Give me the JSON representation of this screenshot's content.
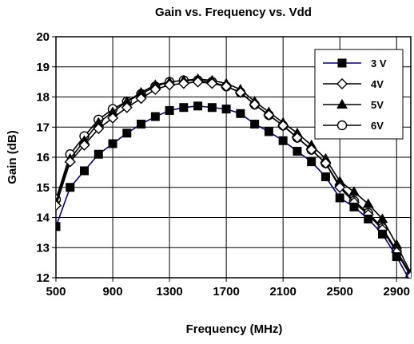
{
  "chart_data": {
    "type": "line",
    "title": "Gain vs. Frequency vs. Vdd",
    "xlabel": "Frequency (MHz)",
    "ylabel": "Gain (dB)",
    "xlim": [
      500,
      3000
    ],
    "ylim": [
      12,
      20
    ],
    "x_ticks": [
      500,
      900,
      1300,
      1700,
      2100,
      2500,
      2900
    ],
    "y_ticks": [
      12,
      13,
      14,
      15,
      16,
      17,
      18,
      19,
      20
    ],
    "grid": true,
    "legend_position": "top-right",
    "x": [
      500,
      600,
      700,
      800,
      900,
      1000,
      1100,
      1200,
      1300,
      1400,
      1500,
      1600,
      1700,
      1800,
      1900,
      2000,
      2100,
      2200,
      2300,
      2400,
      2500,
      2600,
      2700,
      2800,
      2900,
      3000
    ],
    "series": [
      {
        "name": "3 V",
        "marker": "square-filled",
        "color": "#000080",
        "values": [
          13.7,
          15.0,
          15.55,
          16.1,
          16.45,
          16.8,
          17.1,
          17.35,
          17.55,
          17.65,
          17.7,
          17.65,
          17.6,
          17.45,
          17.1,
          16.85,
          16.55,
          16.2,
          15.85,
          15.35,
          14.65,
          14.35,
          13.95,
          13.45,
          12.7,
          11.85
        ]
      },
      {
        "name": "4V",
        "marker": "diamond-open",
        "color": "#000000",
        "values": [
          14.4,
          15.85,
          16.4,
          16.95,
          17.3,
          17.65,
          17.95,
          18.25,
          18.4,
          18.45,
          18.5,
          18.45,
          18.35,
          18.15,
          17.75,
          17.4,
          17.05,
          16.65,
          16.25,
          15.8,
          15.0,
          14.5,
          14.1,
          13.6,
          12.85,
          12.05
        ]
      },
      {
        "name": "5V",
        "marker": "triangle-filled",
        "color": "#000000",
        "values": [
          14.5,
          15.95,
          16.55,
          17.15,
          17.5,
          17.85,
          18.15,
          18.4,
          18.5,
          18.55,
          18.6,
          18.55,
          18.45,
          18.25,
          17.85,
          17.5,
          17.15,
          16.8,
          16.4,
          15.95,
          15.2,
          14.85,
          14.45,
          13.95,
          13.1,
          12.15
        ]
      },
      {
        "name": "6V",
        "marker": "circle-open",
        "color": "#000000",
        "values": [
          14.6,
          16.1,
          16.7,
          17.25,
          17.6,
          17.85,
          18.1,
          18.35,
          18.5,
          18.55,
          18.55,
          18.5,
          18.35,
          18.15,
          17.75,
          17.4,
          17.05,
          16.65,
          16.25,
          15.8,
          15.05,
          14.55,
          14.15,
          13.65,
          12.9,
          12.1
        ]
      }
    ]
  }
}
